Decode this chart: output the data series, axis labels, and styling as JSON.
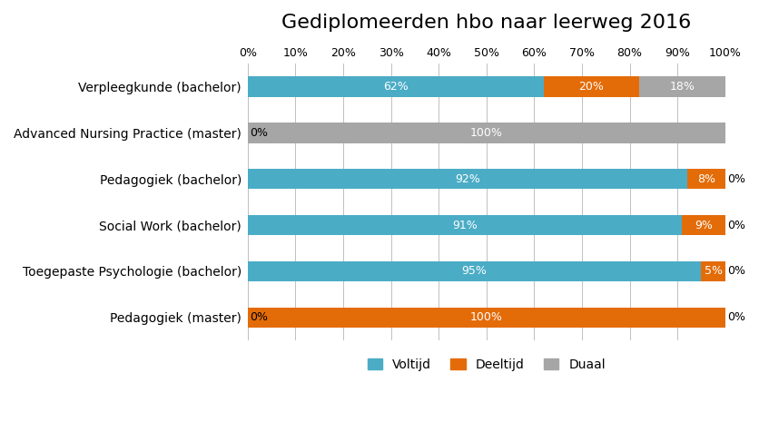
{
  "title": "Gediplomeerden hbo naar leerweg 2016",
  "categories": [
    "Verpleegkunde (bachelor)",
    "Advanced Nursing Practice (master)",
    "Pedagogiek (bachelor)",
    "Social Work (bachelor)",
    "Toegepaste Psychologie (bachelor)",
    "Pedagogiek (master)"
  ],
  "voltijd": [
    62,
    0,
    92,
    91,
    95,
    0
  ],
  "deeltijd": [
    20,
    0,
    8,
    9,
    5,
    100
  ],
  "duaal": [
    18,
    100,
    0,
    0,
    0,
    0
  ],
  "voltijd_label": [
    "62%",
    "0%",
    "92%",
    "91%",
    "95%",
    "0%"
  ],
  "deeltijd_label": [
    "20%",
    "",
    "8%",
    "9%",
    "5%",
    "100%"
  ],
  "duaal_label": [
    "18%",
    "100%",
    "0%",
    "0%",
    "0%",
    "0%"
  ],
  "colors": {
    "voltijd": "#4BACC6",
    "deeltijd": "#E36C09",
    "duaal": "#A6A6A6"
  },
  "legend_labels": [
    "Voltijd",
    "Deeltijd",
    "Duaal"
  ],
  "background_color": "#FFFFFF"
}
